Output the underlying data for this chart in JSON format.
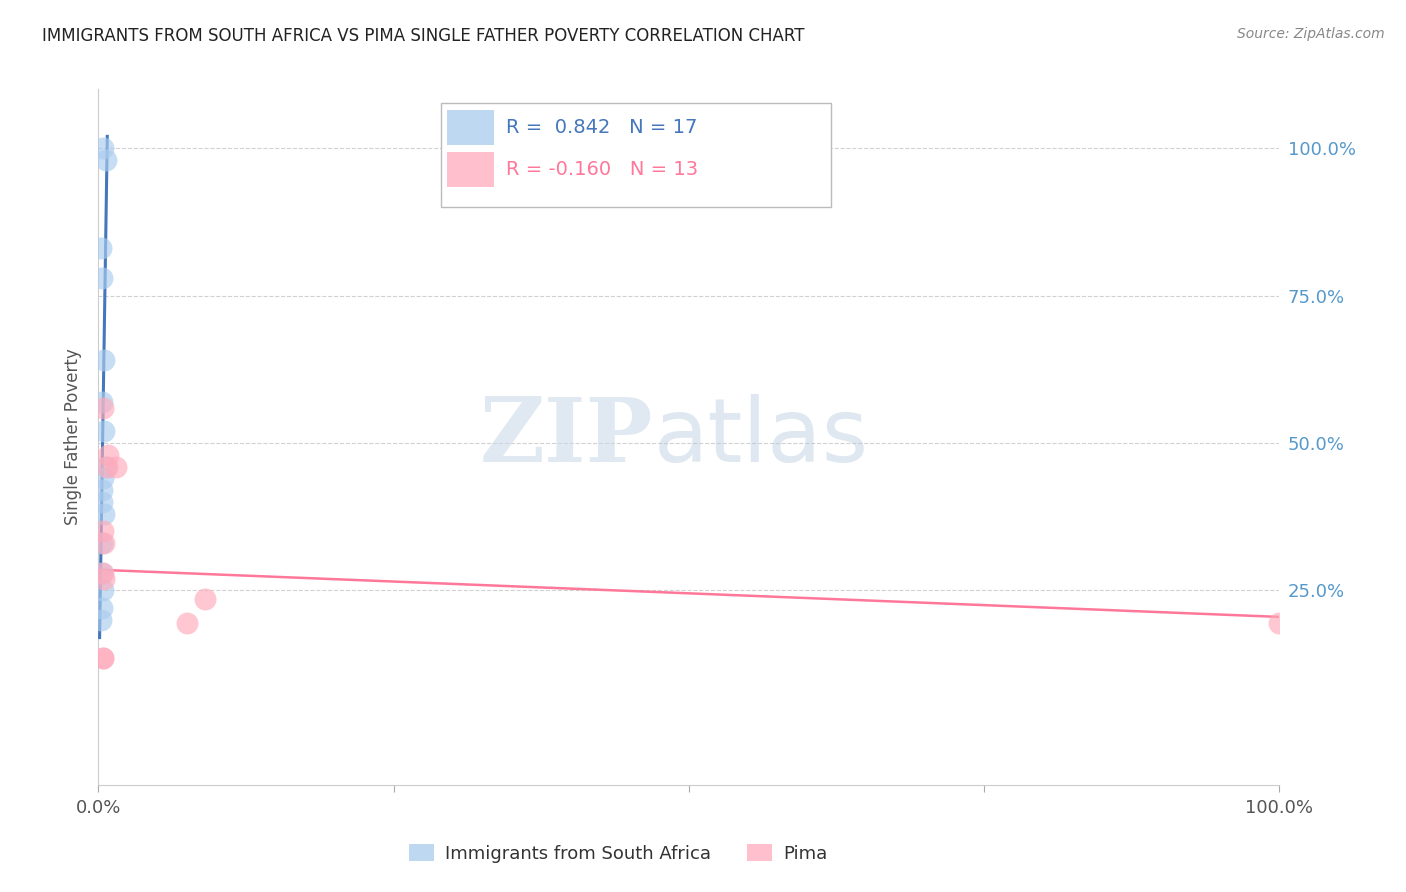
{
  "title": "IMMIGRANTS FROM SOUTH AFRICA VS PIMA SINGLE FATHER POVERTY CORRELATION CHART",
  "source": "Source: ZipAtlas.com",
  "ylabel": "Single Father Poverty",
  "legend_blue_r": "R =  0.842",
  "legend_blue_n": "N = 17",
  "legend_pink_r": "R = -0.160",
  "legend_pink_n": "N = 13",
  "legend_series_blue": "Immigrants from South Africa",
  "legend_series_pink": "Pima",
  "blue_marker_color": "#AACCEE",
  "pink_marker_color": "#FFAABB",
  "blue_line_color": "#4477BB",
  "pink_line_color": "#FF7799",
  "blue_r_color": "#4477BB",
  "pink_r_color": "#FF7799",
  "right_tick_color": "#5599CC",
  "blue_scatter_x": [
    0.004,
    0.006,
    0.002,
    0.003,
    0.005,
    0.003,
    0.005,
    0.006,
    0.004,
    0.003,
    0.003,
    0.005,
    0.003,
    0.003,
    0.004,
    0.003,
    0.002
  ],
  "blue_scatter_y": [
    1.0,
    0.98,
    0.83,
    0.78,
    0.64,
    0.57,
    0.52,
    0.46,
    0.44,
    0.42,
    0.4,
    0.38,
    0.33,
    0.28,
    0.25,
    0.22,
    0.2
  ],
  "pink_scatter_x": [
    0.004,
    0.008,
    0.007,
    0.004,
    0.005,
    0.015,
    0.004,
    0.005,
    0.09,
    0.075,
    0.004,
    0.004,
    1.0
  ],
  "pink_scatter_y": [
    0.56,
    0.48,
    0.46,
    0.35,
    0.33,
    0.46,
    0.28,
    0.27,
    0.235,
    0.195,
    0.135,
    0.135,
    0.195
  ],
  "blue_line_x": [
    0.001,
    0.0075
  ],
  "blue_line_y": [
    0.17,
    1.02
  ],
  "pink_line_x": [
    0.0,
    1.0
  ],
  "pink_line_y": [
    0.285,
    0.205
  ],
  "xlim": [
    0.0,
    1.0
  ],
  "ylim": [
    -0.08,
    1.1
  ],
  "y_ticks": [
    0.25,
    0.5,
    0.75,
    1.0
  ],
  "y_tick_labels": [
    "25.0%",
    "50.0%",
    "75.0%",
    "100.0%"
  ],
  "x_ticks": [
    0.0,
    0.25,
    0.5,
    0.75,
    1.0
  ],
  "x_tick_labels_show": [
    "0.0%",
    "",
    "",
    "",
    "100.0%"
  ]
}
